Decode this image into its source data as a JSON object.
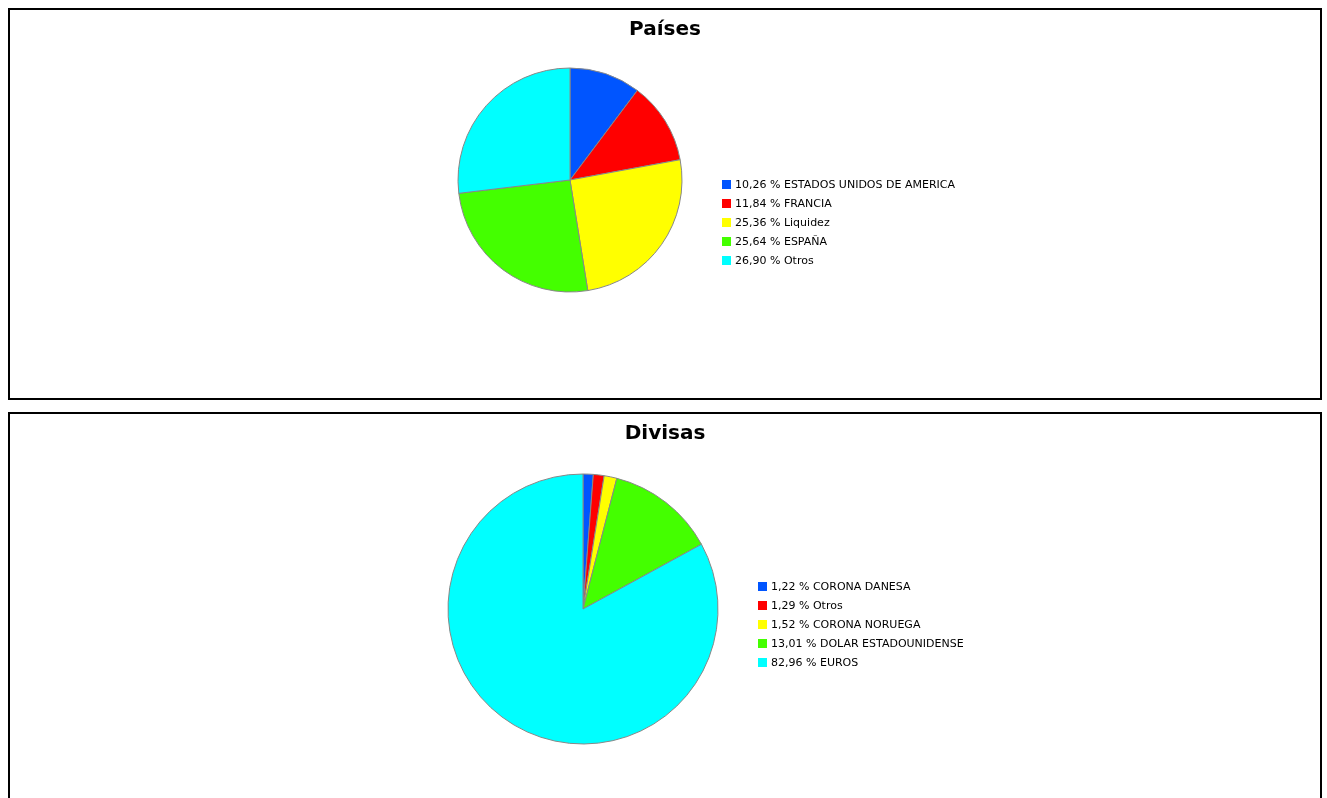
{
  "chart_data": [
    {
      "type": "pie",
      "title": "Países",
      "categories": [
        "10,26 % ESTADOS UNIDOS DE AMERICA",
        "11,84 % FRANCIA",
        "25,36 % Liquidez",
        "25,64 % ESPAÑA",
        "26,90 % Otros"
      ],
      "values": [
        10.26,
        11.84,
        25.36,
        25.64,
        26.9
      ],
      "colors": [
        "#0055ff",
        "#ff0000",
        "#ffff00",
        "#44ff00",
        "#00ffff"
      ],
      "legend": "right"
    },
    {
      "type": "pie",
      "title": "Divisas",
      "categories": [
        "1,22 % CORONA DANESA",
        "1,29 % Otros",
        "1,52 % CORONA NORUEGA",
        "13,01 % DOLAR ESTADOUNIDENSE",
        "82,96 % EUROS"
      ],
      "values": [
        1.22,
        1.29,
        1.52,
        13.01,
        82.96
      ],
      "colors": [
        "#0055ff",
        "#ff0000",
        "#ffff00",
        "#44ff00",
        "#00ffff"
      ],
      "legend": "right"
    }
  ]
}
